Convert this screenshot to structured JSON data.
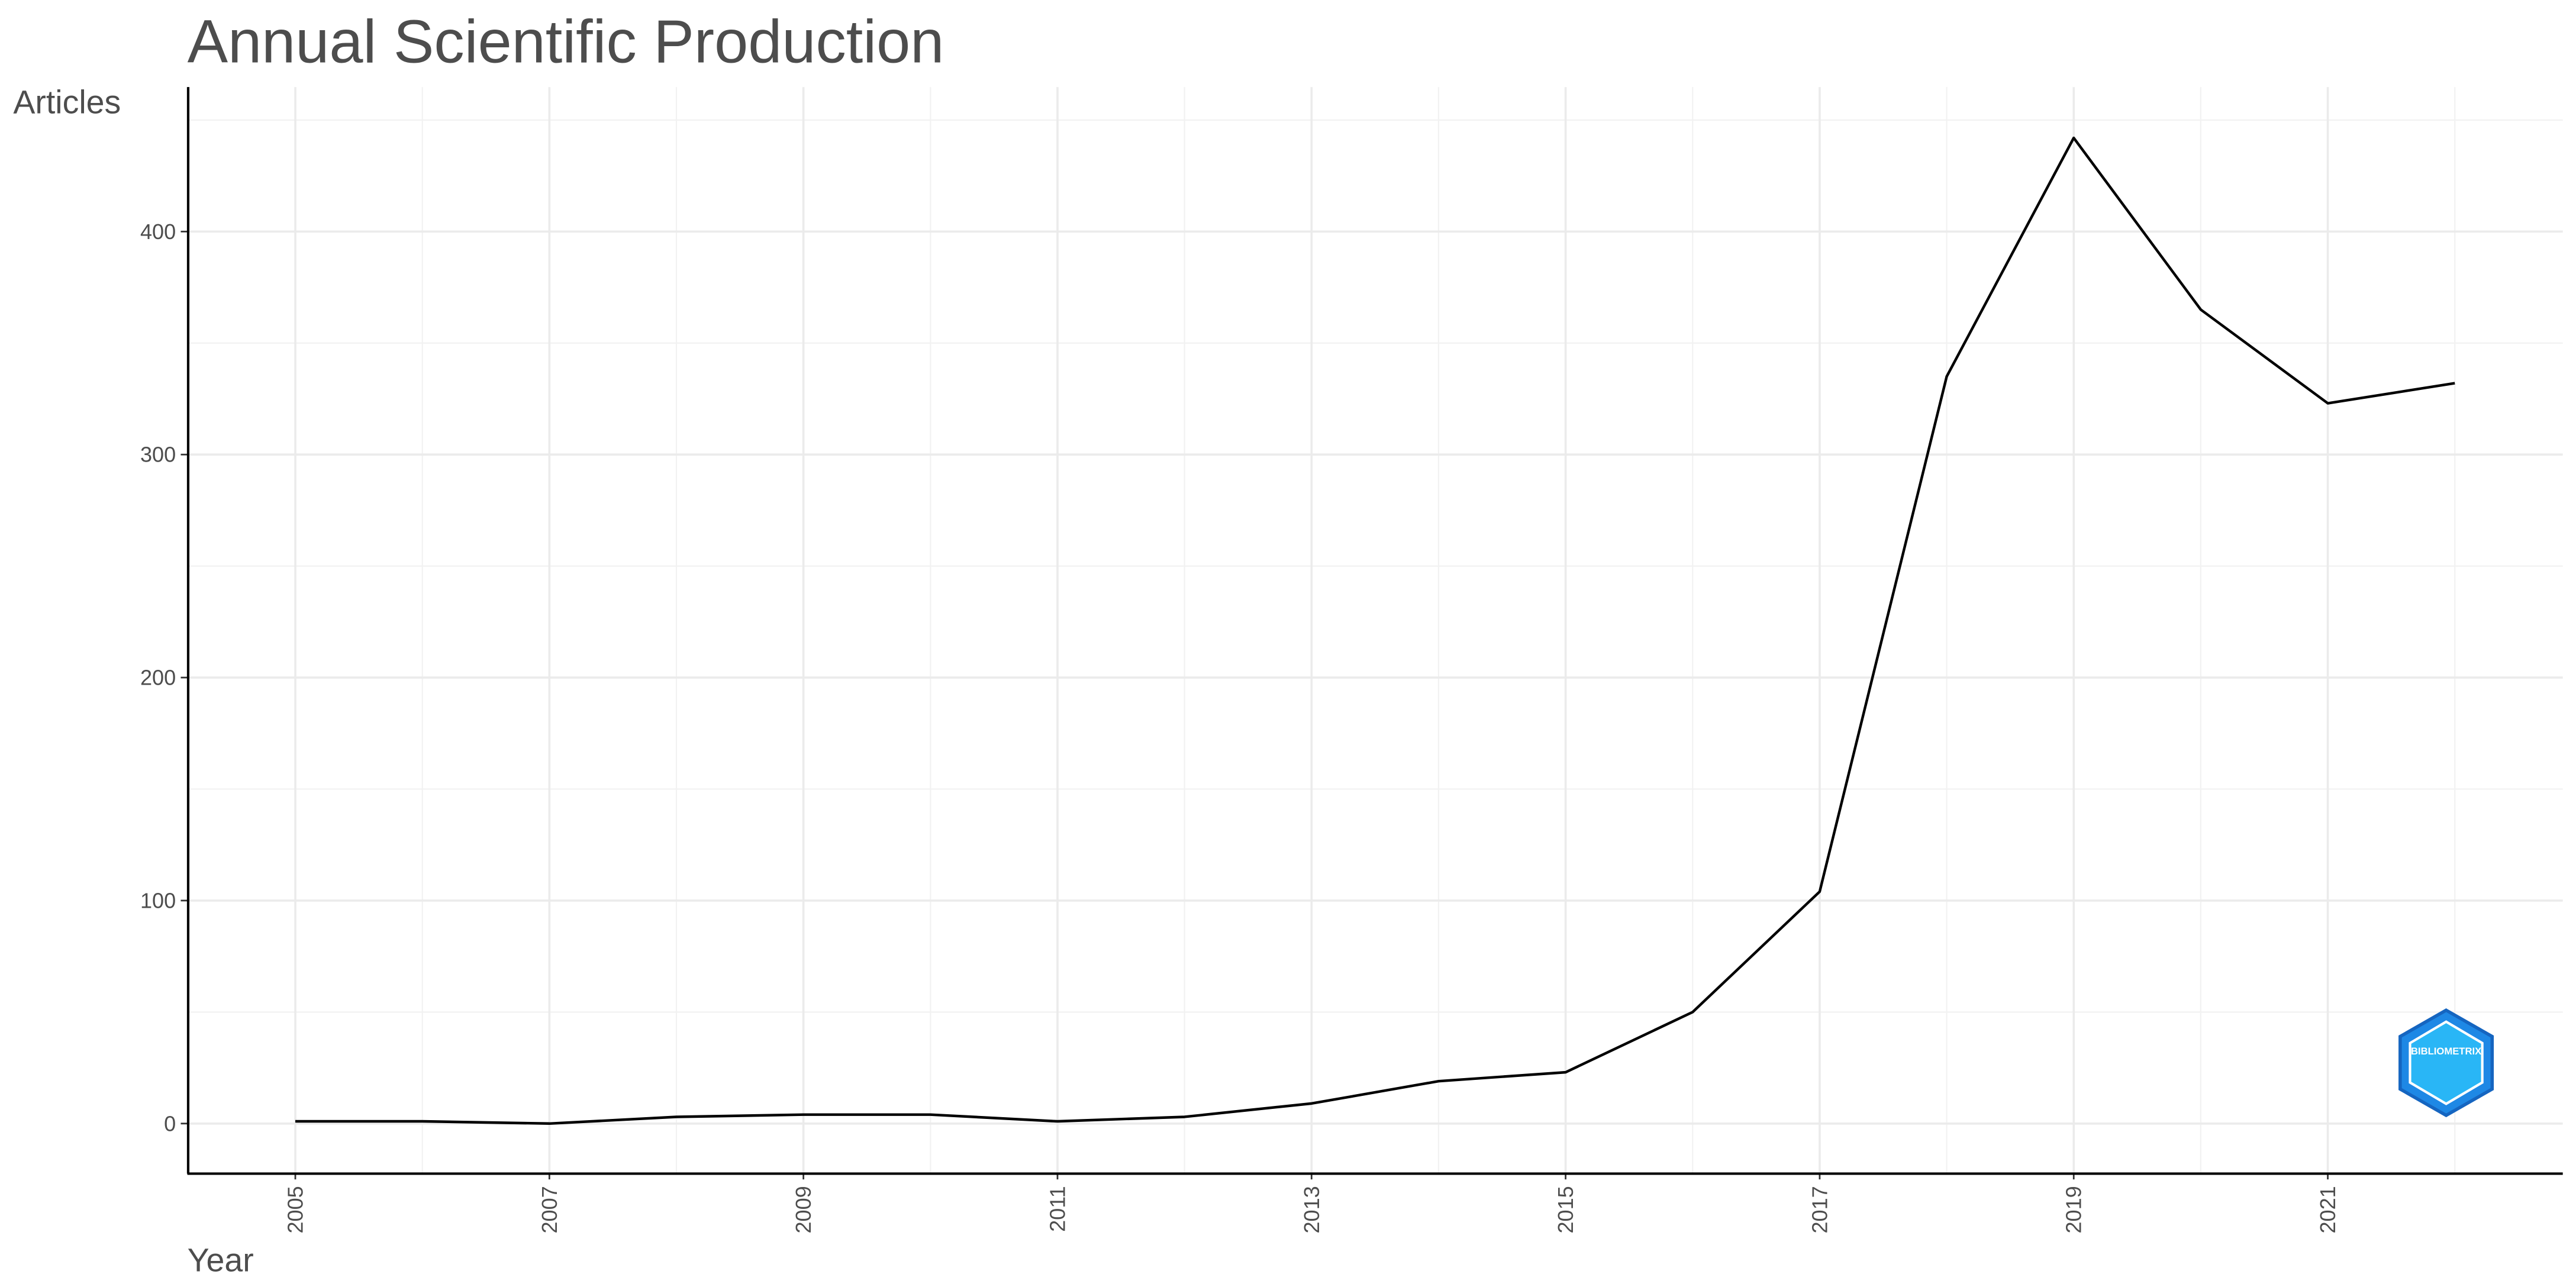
{
  "chart_data": {
    "type": "line",
    "title": "Annual Scientific Production",
    "xlabel": "Year",
    "ylabel": "Articles",
    "x": [
      2005,
      2006,
      2007,
      2008,
      2009,
      2010,
      2011,
      2012,
      2013,
      2014,
      2015,
      2016,
      2017,
      2018,
      2019,
      2020,
      2021,
      2022
    ],
    "series": [
      {
        "name": "Articles",
        "color": "#000000",
        "values": [
          1,
          1,
          0,
          3,
          4,
          4,
          1,
          3,
          9,
          19,
          23,
          50,
          104,
          335,
          442,
          365,
          323,
          332
        ]
      }
    ],
    "xlim": [
      2004.15,
      2022.85
    ],
    "ylim": [
      -22.1,
      464.8
    ],
    "xticks": [
      2005,
      2007,
      2009,
      2011,
      2013,
      2015,
      2017,
      2019,
      2021
    ],
    "xminor": [
      2006,
      2008,
      2010,
      2012,
      2014,
      2016,
      2018,
      2020,
      2022
    ],
    "yticks": [
      0,
      100,
      200,
      300,
      400
    ],
    "yminor": [
      50,
      150,
      250,
      350,
      450
    ],
    "grid": true,
    "logo_text": "BIBLIOMETRIX"
  }
}
